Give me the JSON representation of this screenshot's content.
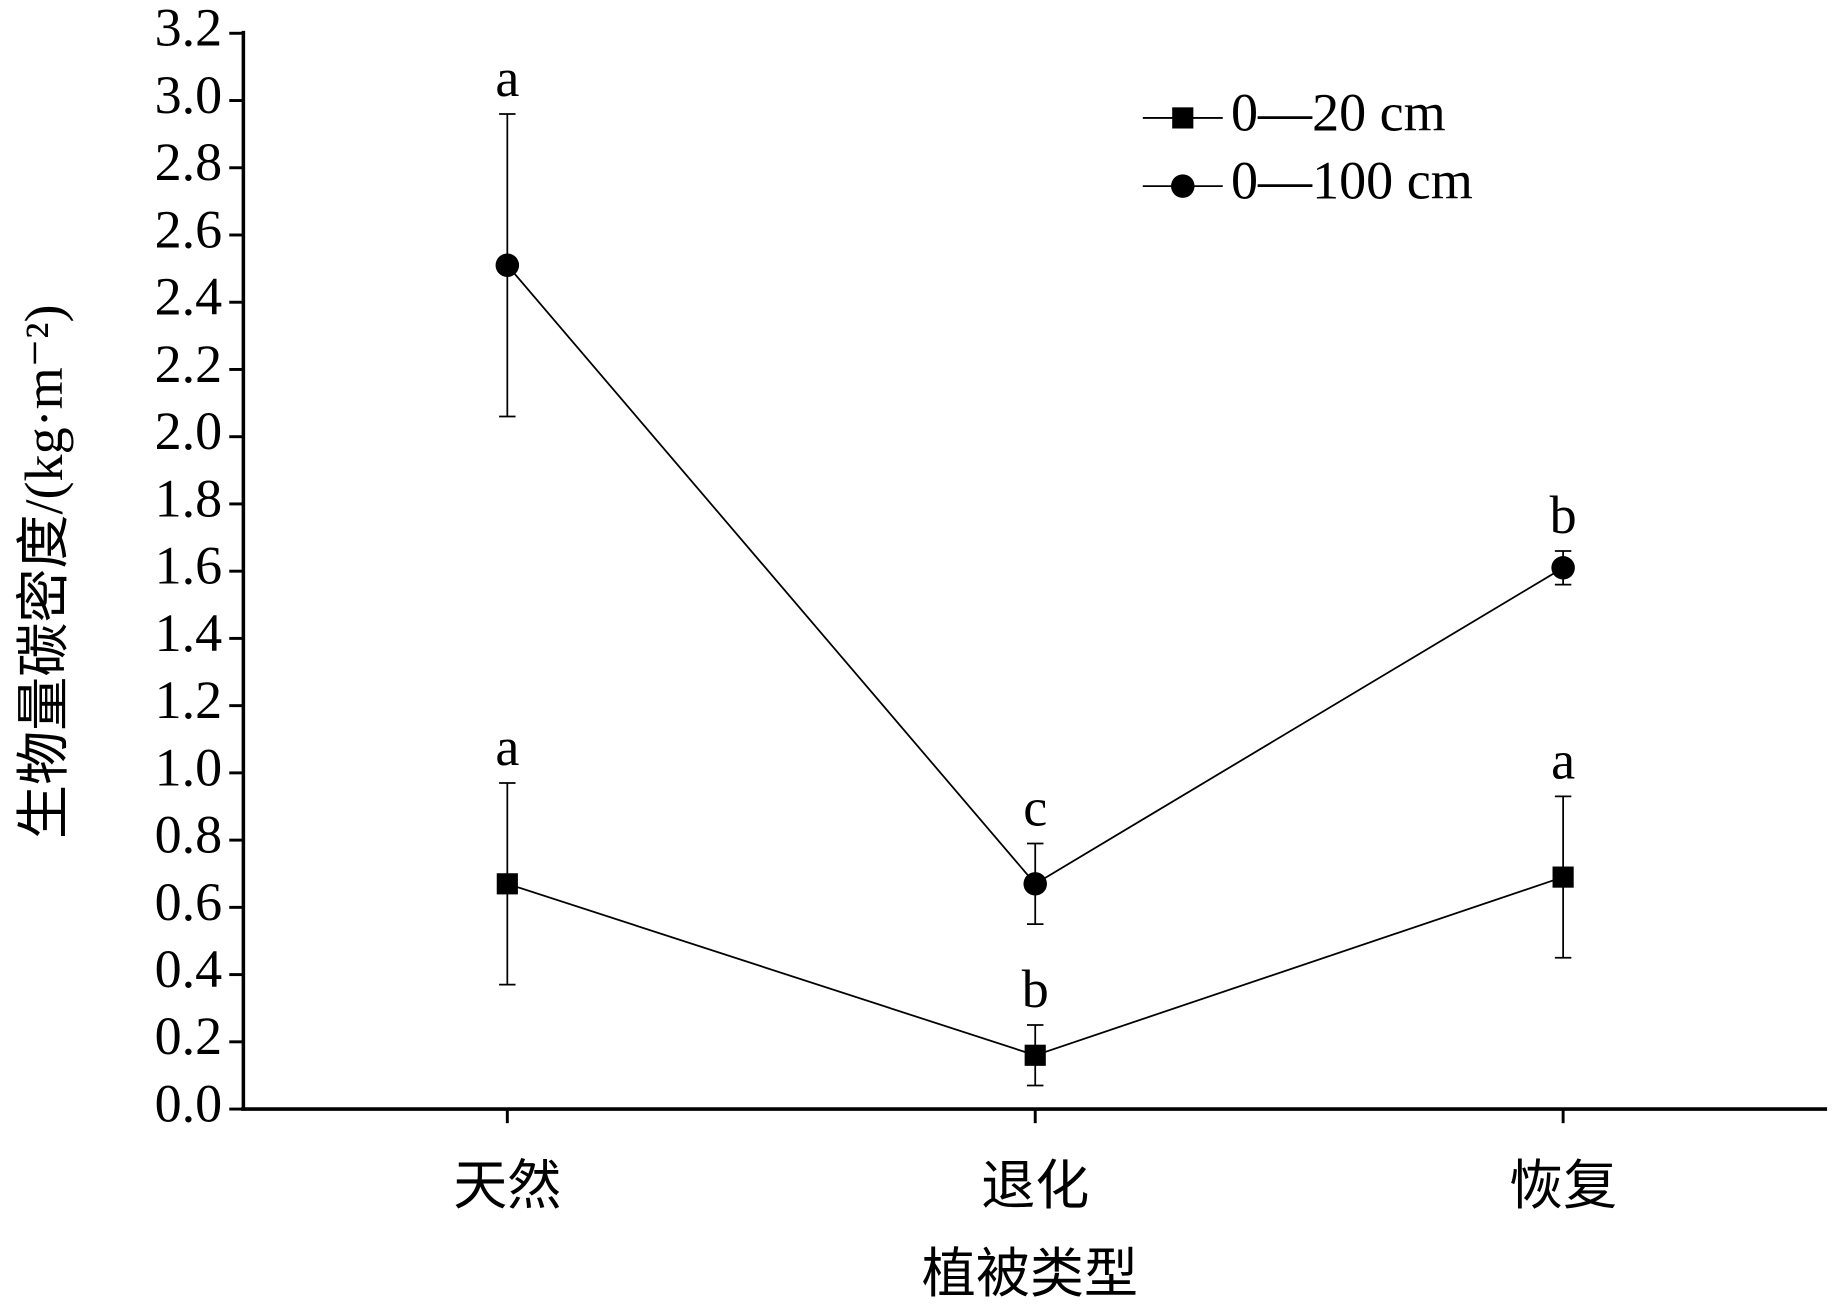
{
  "chart_data": {
    "type": "line",
    "xlabel": "植被类型",
    "ylabel": "生物量碳密度/(kg·m⁻²)",
    "categories": [
      "天然",
      "退化",
      "恢复"
    ],
    "series": [
      {
        "name": "0—20 cm",
        "marker": "square",
        "color": "#000000",
        "values": [
          0.67,
          0.16,
          0.69
        ],
        "errors": [
          0.3,
          0.09,
          0.24
        ],
        "labels": [
          "a",
          "b",
          "a"
        ]
      },
      {
        "name": "0—100 cm",
        "marker": "circle",
        "color": "#000000",
        "values": [
          2.51,
          0.67,
          1.61
        ],
        "errors": [
          0.45,
          0.12,
          0.05
        ],
        "labels": [
          "a",
          "c",
          "b"
        ]
      }
    ],
    "ylim": [
      0,
      3.2
    ],
    "yticks": [
      {
        "value": 0,
        "label": "0.0"
      },
      0.2,
      0.4,
      0.6,
      0.8,
      {
        "value": 1,
        "label": "1.0"
      },
      1.2,
      1.4,
      1.6,
      1.8,
      {
        "value": 2,
        "label": "2.0"
      },
      2.2,
      2.4,
      2.6,
      2.8,
      {
        "value": 3,
        "label": "3.0"
      },
      3.2
    ],
    "legend": "upper right"
  }
}
